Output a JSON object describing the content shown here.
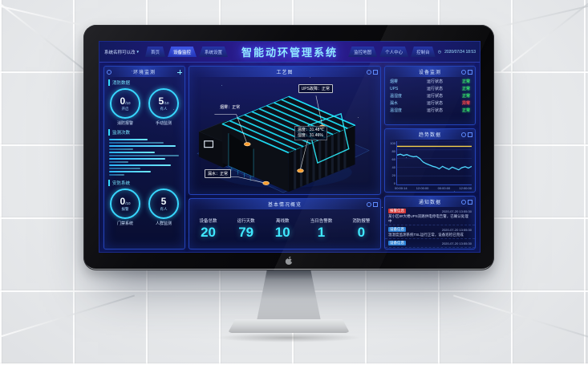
{
  "nav": {
    "system_name": "系统名称可以改",
    "dropdown_icon": "▼",
    "title": "智能动环管理系统",
    "clock_icon": "◷",
    "datetime": "2020/07/24 18:53",
    "tabs_left": [
      {
        "label": "首页",
        "active": false
      },
      {
        "label": "设备监控",
        "active": true
      },
      {
        "label": "系统设置",
        "active": false
      }
    ],
    "tabs_right": [
      {
        "label": "监控地图",
        "active": false
      },
      {
        "label": "个人中心",
        "active": false
      },
      {
        "label": "控制台",
        "active": false
      }
    ]
  },
  "left_panel": {
    "header": "环境监测",
    "sections": {
      "fire": {
        "title": "消防数据",
        "gauges": [
          {
            "value": "0",
            "suffix": "/10",
            "inner": "开启",
            "label": "消防报警"
          },
          {
            "value": "5",
            "suffix": "/10",
            "inner": "有人",
            "label": "手动监测"
          }
        ]
      },
      "bars": {
        "title": "监测次数"
      },
      "security": {
        "title": "安防系统",
        "gauges": [
          {
            "value": "0",
            "suffix": "/10",
            "inner": "报警",
            "label": "门禁系统"
          },
          {
            "value": "5",
            "suffix": "",
            "inner": "有人",
            "label": "人群监测"
          }
        ]
      }
    }
  },
  "scene": {
    "header": "工艺图",
    "callouts": {
      "smoke": "烟雾：正常",
      "ups": "UPS故障：正常",
      "temp": "温度：31.48℃",
      "hum": "湿度：31.46%",
      "leak": "漏水：正常"
    }
  },
  "overview": {
    "header": "基本情况概览",
    "stats": [
      {
        "label": "设备总数",
        "value": "20"
      },
      {
        "label": "运行天数",
        "value": "79"
      },
      {
        "label": "离线数",
        "value": "10"
      },
      {
        "label": "当日告警数",
        "value": "1"
      },
      {
        "label": "消防报警",
        "value": "0"
      }
    ]
  },
  "device_panel": {
    "header": "设备监测",
    "rows": [
      {
        "name": "烟雾",
        "metric": "运行状态",
        "status": "正常",
        "state": "ok"
      },
      {
        "name": "UPS",
        "metric": "运行状态",
        "status": "正常",
        "state": "ok"
      },
      {
        "name": "温湿度",
        "metric": "运行状态",
        "status": "正常",
        "state": "ok"
      },
      {
        "name": "漏水",
        "metric": "运行状态",
        "status": "异常",
        "state": "err"
      },
      {
        "name": "温湿度",
        "metric": "运行状态",
        "status": "正常",
        "state": "ok"
      }
    ]
  },
  "trend_panel": {
    "header": "趋势数据"
  },
  "notice_panel": {
    "header": "通知数据",
    "items": [
      {
        "badge": "报警信息",
        "level": "red",
        "time": "2020-07-20 13:55:30",
        "text": "某小区8#大楼UPS双路供电停电告警，已确认处理中"
      },
      {
        "badge": "设备信息",
        "level": "blue",
        "time": "2020-07-20 13:55:30",
        "text": "温湿度监测系统TSL运行正常，设备巡检已完成"
      },
      {
        "badge": "设备信息",
        "level": "blue",
        "time": "2020-07-20 13:55:30",
        "text": ""
      }
    ]
  },
  "chart_data": [
    {
      "type": "bar",
      "title": "监测次数",
      "orientation": "horizontal",
      "values": [
        55,
        78,
        95,
        35,
        65,
        100,
        80,
        28,
        88,
        45,
        60,
        22
      ],
      "xlim": [
        0,
        100
      ],
      "color": "#4fd0ff"
    },
    {
      "type": "line",
      "title": "趋势数据",
      "x_ticks": [
        "00:00:14",
        "12:00:00",
        "00:00:00",
        "12:00:00"
      ],
      "y_ticks": [
        100,
        80,
        60,
        40,
        20,
        0
      ],
      "ylim": [
        0,
        100
      ],
      "grid": true,
      "legend_position": "none",
      "series": [
        {
          "name": "阈值上限",
          "color": "#f5d04a",
          "values": [
            88,
            88,
            88,
            88,
            88,
            88,
            88,
            88,
            88,
            88,
            88,
            88,
            88,
            88,
            88,
            88,
            88,
            88,
            88,
            88,
            88,
            88,
            88,
            88
          ]
        },
        {
          "name": "实时数值",
          "color": "#4fd8ff",
          "values": [
            68,
            70,
            67,
            69,
            66,
            64,
            65,
            60,
            52,
            48,
            45,
            42,
            40,
            36,
            42,
            38,
            35,
            40,
            37,
            34,
            39,
            41,
            38,
            42
          ]
        }
      ]
    }
  ]
}
